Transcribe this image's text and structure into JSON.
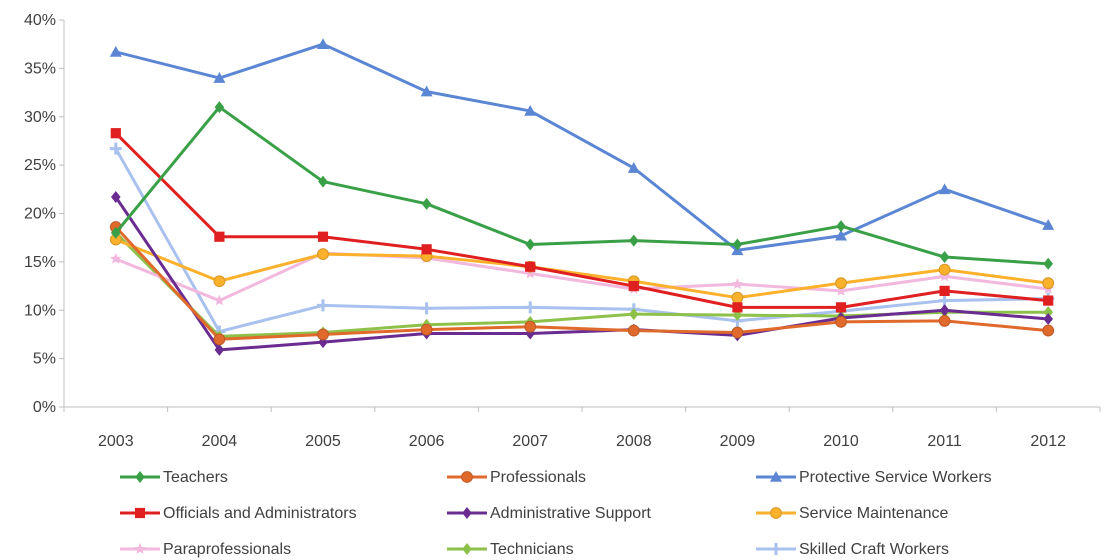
{
  "chart_data": {
    "type": "line",
    "title": "",
    "xlabel": "",
    "ylabel": "",
    "categories": [
      "2003",
      "2004",
      "2005",
      "2006",
      "2007",
      "2008",
      "2009",
      "2010",
      "2011",
      "2012"
    ],
    "ylim": [
      0,
      40
    ],
    "y_ticks": [
      "0%",
      "5%",
      "10%",
      "15%",
      "20%",
      "25%",
      "30%",
      "35%",
      "40%"
    ],
    "grid": false,
    "legend_position": "bottom",
    "series": [
      {
        "name": "Teachers",
        "color": "#3aa047",
        "marker": "diamond",
        "values": [
          18.0,
          31.0,
          23.3,
          21.0,
          16.8,
          17.2,
          16.8,
          18.7,
          15.5,
          14.8
        ]
      },
      {
        "name": "Professionals",
        "color": "#e06a2c",
        "marker": "circle",
        "values": [
          18.6,
          7.0,
          7.5,
          8.0,
          8.3,
          7.9,
          7.7,
          8.8,
          8.9,
          7.9
        ]
      },
      {
        "name": "Protective Service Workers",
        "color": "#5b86d4",
        "marker": "triangle",
        "values": [
          36.7,
          34.0,
          37.5,
          32.6,
          30.6,
          24.7,
          16.2,
          17.7,
          22.5,
          18.8
        ]
      },
      {
        "name": "Officials and Administrators",
        "color": "#e02020",
        "marker": "square",
        "values": [
          28.3,
          17.6,
          17.6,
          16.3,
          14.5,
          12.5,
          10.3,
          10.3,
          12.0,
          11.0
        ]
      },
      {
        "name": "Administrative Support",
        "color": "#6a2c91",
        "marker": "diamond",
        "values": [
          21.7,
          5.9,
          6.7,
          7.6,
          7.6,
          8.0,
          7.4,
          9.2,
          10.0,
          9.1
        ]
      },
      {
        "name": "Service Maintenance",
        "color": "#fbb12b",
        "marker": "circle",
        "values": [
          17.3,
          13.0,
          15.8,
          15.6,
          14.5,
          13.0,
          11.3,
          12.8,
          14.2,
          12.8
        ]
      },
      {
        "name": "Paraprofessionals",
        "color": "#f2b8de",
        "marker": "star",
        "values": [
          15.3,
          11.0,
          15.9,
          15.4,
          13.8,
          12.2,
          12.7,
          12.0,
          13.5,
          12.2
        ]
      },
      {
        "name": "Technicians",
        "color": "#8dc14a",
        "marker": "diamond",
        "values": [
          18.0,
          7.3,
          7.7,
          8.5,
          8.8,
          9.6,
          9.5,
          9.4,
          9.8,
          9.8
        ]
      },
      {
        "name": "Skilled Craft Workers",
        "color": "#a9c1ee",
        "marker": "plus",
        "values": [
          26.7,
          7.8,
          10.5,
          10.2,
          10.3,
          10.1,
          8.9,
          9.9,
          11.0,
          11.2
        ]
      }
    ]
  }
}
